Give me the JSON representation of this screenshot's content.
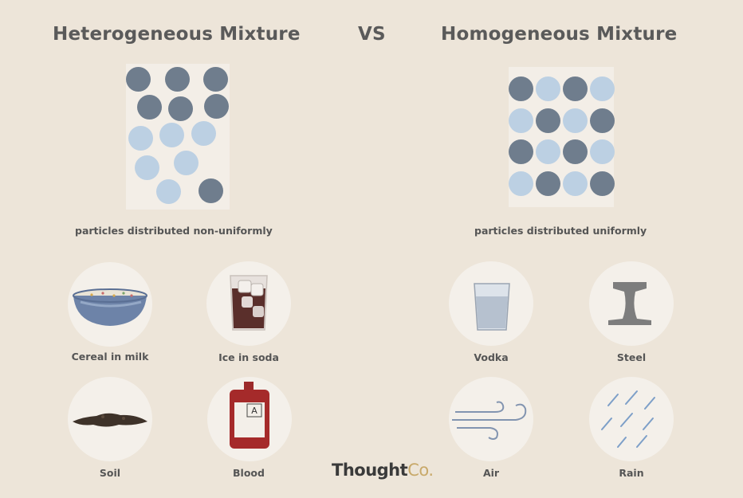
{
  "header": {
    "left_title": "Heterogeneous Mixture",
    "vs": "VS",
    "right_title": "Homogeneous Mixture"
  },
  "captions": {
    "left": "particles distributed non-uniformly",
    "right": "particles distributed uniformly"
  },
  "heterogeneous_examples": [
    {
      "label": "Cereal in milk",
      "icon": "cereal-bowl-icon"
    },
    {
      "label": "Ice in soda",
      "icon": "ice-soda-glass-icon"
    },
    {
      "label": "Soil",
      "icon": "soil-clump-icon"
    },
    {
      "label": "Blood",
      "icon": "blood-bag-icon"
    }
  ],
  "homogeneous_examples": [
    {
      "label": "Vodka",
      "icon": "vodka-glass-icon"
    },
    {
      "label": "Steel",
      "icon": "steel-beam-icon"
    },
    {
      "label": "Air",
      "icon": "air-wind-icon"
    },
    {
      "label": "Rain",
      "icon": "rain-icon"
    }
  ],
  "blood_bag_letter": "A",
  "brand": {
    "name": "Thought",
    "suffix": "Co."
  },
  "colors": {
    "background": "#ede5d9",
    "dark_particle": "#6f7d8d",
    "light_particle": "#bcd0e3"
  }
}
